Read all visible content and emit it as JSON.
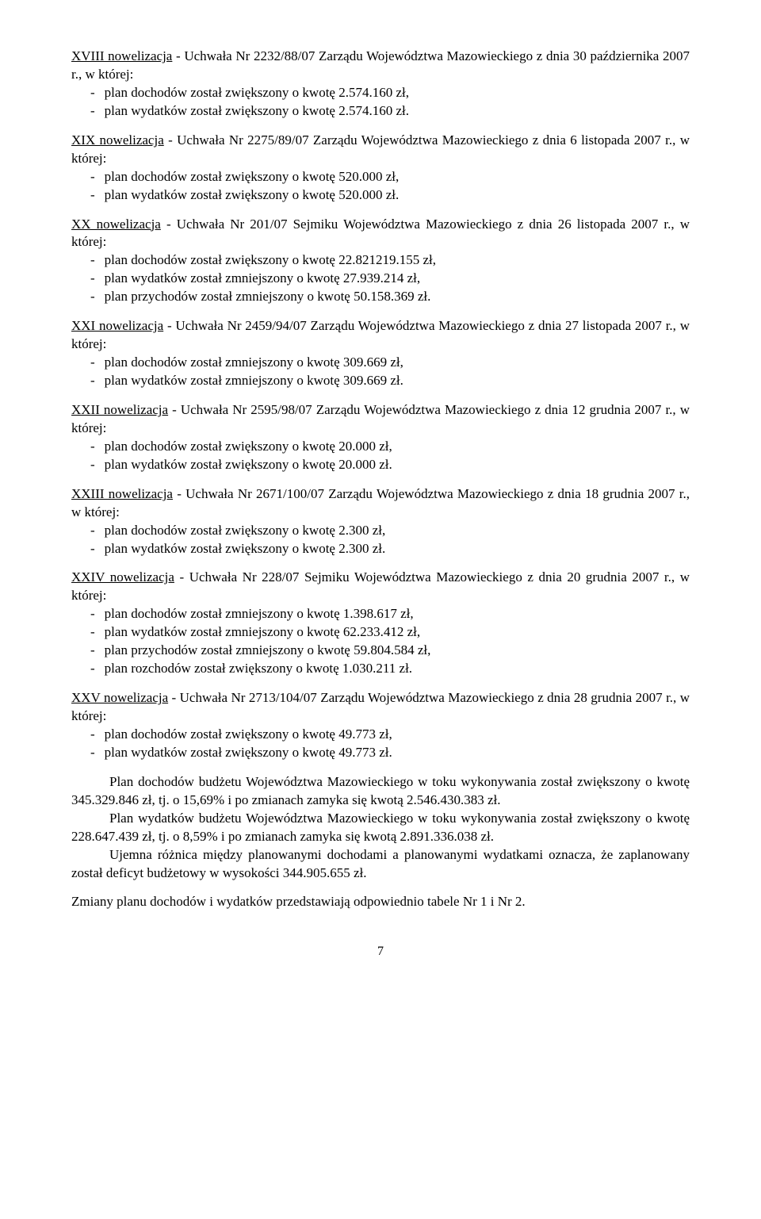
{
  "novelizations": [
    {
      "head": "<span class='u'>XVIII nowelizacja</span> - Uchwała Nr 2232/88/07 Zarządu Województwa Mazowieckiego z dnia 30 października 2007 r., w której:",
      "bullets": [
        "plan dochodów został zwiększony o kwotę 2.574.160 zł,",
        "plan wydatków został zwiększony o kwotę 2.574.160 zł."
      ]
    },
    {
      "head": "<span class='u'>XIX nowelizacja</span> - Uchwała Nr 2275/89/07 Zarządu Województwa Mazowieckiego z dnia 6 listopada 2007 r., w której:",
      "bullets": [
        "plan dochodów został zwiększony o kwotę 520.000 zł,",
        "plan wydatków został zwiększony o kwotę 520.000 zł."
      ]
    },
    {
      "head": "<span class='u'>XX nowelizacja</span> - Uchwała Nr 201/07 Sejmiku Województwa Mazowieckiego z dnia 26 listopada 2007 r., w której:",
      "bullets": [
        "plan dochodów został zwiększony o kwotę 22.821219.155 zł,",
        "plan wydatków został zmniejszony o kwotę 27.939.214 zł,",
        "plan przychodów został zmniejszony o kwotę 50.158.369 zł."
      ]
    },
    {
      "head": "<span class='u'>XXI nowelizacja</span> - Uchwała Nr 2459/94/07 Zarządu Województwa Mazowieckiego z dnia 27 listopada 2007 r., w której:",
      "bullets": [
        "plan dochodów został zmniejszony o kwotę 309.669 zł,",
        "plan wydatków został zmniejszony o kwotę 309.669 zł."
      ]
    },
    {
      "head": "<span class='u'>XXII nowelizacja</span> - Uchwała Nr 2595/98/07 Zarządu Województwa Mazowieckiego z dnia 12 grudnia 2007 r., w której:",
      "bullets": [
        "plan dochodów został zwiększony o kwotę 20.000 zł,",
        "plan wydatków został zwiększony o kwotę 20.000 zł."
      ]
    },
    {
      "head": "<span class='u'>XXIII nowelizacja</span> - Uchwała Nr 2671/100/07 Zarządu Województwa Mazowieckiego z dnia 18 grudnia 2007 r., w której:",
      "bullets": [
        "plan dochodów został zwiększony o kwotę 2.300 zł,",
        "plan wydatków został zwiększony o kwotę 2.300 zł."
      ]
    },
    {
      "head": "<span class='u'>XXIV nowelizacja</span> - Uchwała Nr 228/07 Sejmiku Województwa Mazowieckiego z dnia 20 grudnia 2007 r., w której:",
      "bullets": [
        "plan dochodów został zmniejszony o kwotę 1.398.617 zł,",
        "plan wydatków został zmniejszony o kwotę 62.233.412 zł,",
        "plan przychodów został zmniejszony o kwotę 59.804.584 zł,",
        "plan rozchodów został zwiększony o kwotę 1.030.211 zł."
      ]
    },
    {
      "head": "<span class='u'>XXV nowelizacja</span> - Uchwała Nr 2713/104/07 Zarządu Województwa Mazowieckiego z dnia 28 grudnia 2007 r., w której:",
      "bullets": [
        "plan dochodów został zwiększony o kwotę 49.773 zł,",
        "plan wydatków został zwiększony o kwotę 49.773 zł."
      ]
    }
  ],
  "summary": [
    "Plan dochodów budżetu Województwa Mazowieckiego w toku wykonywania został zwiększony o kwotę 345.329.846 zł, tj. o 15,69% i po zmianach zamyka się kwotą 2.546.430.383 zł.",
    "Plan wydatków budżetu Województwa Mazowieckiego w toku wykonywania został zwiększony o kwotę 228.647.439 zł, tj. o 8,59% i po zmianach zamyka się kwotą 2.891.336.038 zł.",
    "Ujemna różnica między planowanymi dochodami a planowanymi wydatkami oznacza, że zaplanowany został deficyt budżetowy w wysokości 344.905.655 zł."
  ],
  "footer_line": "Zmiany planu dochodów i wydatków przedstawiają odpowiednio tabele Nr 1 i Nr 2.",
  "page_num": "7"
}
